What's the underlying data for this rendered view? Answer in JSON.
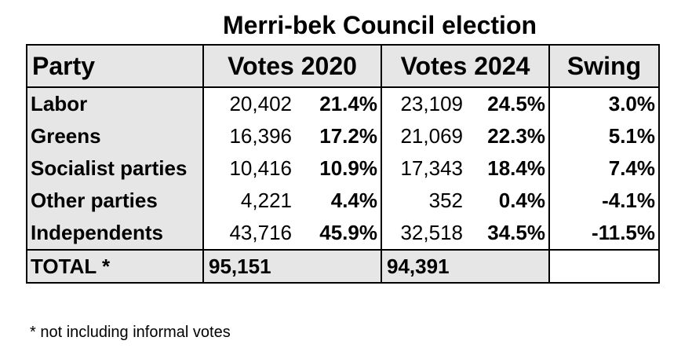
{
  "title": "Merri-bek Council election",
  "table": {
    "headers": {
      "party": "Party",
      "votes_2020": "Votes 2020",
      "votes_2024": "Votes 2024",
      "swing": "Swing"
    },
    "rows": [
      {
        "party": "Labor",
        "votes_2020": "20,402",
        "pct_2020": "21.4%",
        "votes_2024": "23,109",
        "pct_2024": "24.5%",
        "swing": "3.0%"
      },
      {
        "party": "Greens",
        "votes_2020": "16,396",
        "pct_2020": "17.2%",
        "votes_2024": "21,069",
        "pct_2024": "22.3%",
        "swing": "5.1%"
      },
      {
        "party": "Socialist parties",
        "votes_2020": "10,416",
        "pct_2020": "10.9%",
        "votes_2024": "17,343",
        "pct_2024": "18.4%",
        "swing": "7.4%"
      },
      {
        "party": "Other parties",
        "votes_2020": "4,221",
        "pct_2020": "4.4%",
        "votes_2024": "352",
        "pct_2024": "0.4%",
        "swing": "-4.1%"
      },
      {
        "party": "Independents",
        "votes_2020": "43,716",
        "pct_2020": "45.9%",
        "votes_2024": "32,518",
        "pct_2024": "34.5%",
        "swing": "-11.5%"
      }
    ],
    "total": {
      "label": "TOTAL *",
      "votes_2020": "95,151",
      "votes_2024": "94,391"
    }
  },
  "footnote": "* not including informal votes",
  "colors": {
    "header_fill": "#e7e6e6",
    "border": "#000000"
  }
}
